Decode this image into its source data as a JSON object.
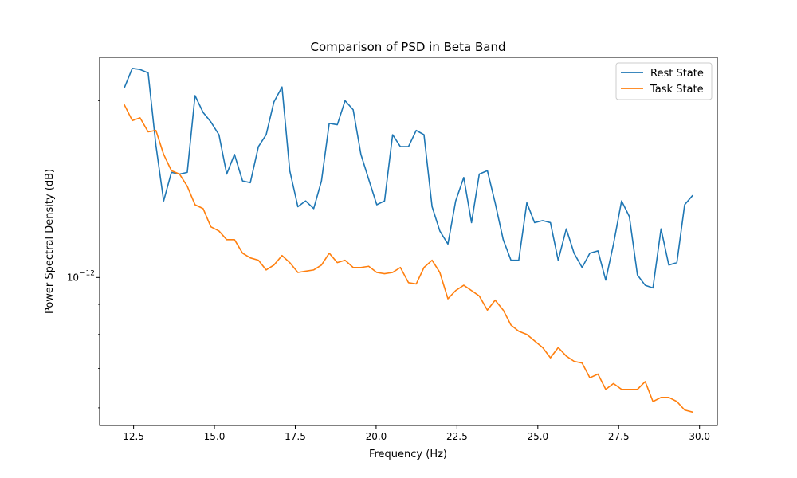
{
  "chart_data": {
    "type": "line",
    "title": "Comparison of PSD in Beta Band",
    "xlabel": "Frequency (Hz)",
    "ylabel": "Power Spectral Density (dB)",
    "xlim": [
      11.45,
      30.55
    ],
    "ylim": [
      5.6e-13,
      2.37e-12
    ],
    "y_scale": "log",
    "x_ticks": [
      12.5,
      15.0,
      17.5,
      20.0,
      22.5,
      25.0,
      27.5,
      30.0
    ],
    "x_tick_labels": [
      "12.5",
      "15.0",
      "17.5",
      "20.0",
      "22.5",
      "25.0",
      "27.5",
      "30.0"
    ],
    "y_major_tick": 1e-12,
    "y_major_tick_label_base": "10",
    "y_major_tick_label_exp": "−12",
    "y_minor_ticks": [
      6e-13,
      7e-13,
      8e-13,
      9e-13,
      2e-12
    ],
    "legend_position": "upper right",
    "grid": false,
    "x": [
      12.21,
      12.46,
      12.7,
      12.95,
      13.19,
      13.43,
      13.67,
      13.92,
      14.16,
      14.4,
      14.65,
      14.89,
      15.14,
      15.38,
      15.62,
      15.87,
      16.11,
      16.36,
      16.6,
      16.84,
      17.09,
      17.33,
      17.58,
      17.82,
      18.07,
      18.31,
      18.55,
      18.8,
      19.04,
      19.29,
      19.53,
      19.77,
      20.02,
      20.26,
      20.51,
      20.75,
      21.0,
      21.24,
      21.48,
      21.73,
      21.97,
      22.22,
      22.46,
      22.71,
      22.95,
      23.19,
      23.44,
      23.68,
      23.93,
      24.17,
      24.41,
      24.66,
      24.9,
      25.15,
      25.39,
      25.63,
      25.88,
      26.12,
      26.37,
      26.61,
      26.86,
      27.1,
      27.34,
      27.59,
      27.83,
      28.08,
      28.32,
      28.56,
      28.81,
      29.05,
      29.3,
      29.54,
      29.79
    ],
    "series": [
      {
        "name": "Rest State",
        "color": "#1f77b4",
        "values": [
          2.1e-12,
          2.27e-12,
          2.26e-12,
          2.23e-12,
          1.68e-12,
          1.35e-12,
          1.51e-12,
          1.5e-12,
          1.51e-12,
          2.04e-12,
          1.91e-12,
          1.84e-12,
          1.75e-12,
          1.5e-12,
          1.62e-12,
          1.46e-12,
          1.45e-12,
          1.67e-12,
          1.75e-12,
          1.99e-12,
          2.11e-12,
          1.52e-12,
          1.32e-12,
          1.35e-12,
          1.31e-12,
          1.46e-12,
          1.83e-12,
          1.82e-12,
          2e-12,
          1.93e-12,
          1.62e-12,
          1.47e-12,
          1.33e-12,
          1.35e-12,
          1.75e-12,
          1.67e-12,
          1.67e-12,
          1.78e-12,
          1.75e-12,
          1.32e-12,
          1.2e-12,
          1.14e-12,
          1.35e-12,
          1.48e-12,
          1.24e-12,
          1.5e-12,
          1.52e-12,
          1.34e-12,
          1.16e-12,
          1.07e-12,
          1.07e-12,
          1.34e-12,
          1.24e-12,
          1.25e-12,
          1.24e-12,
          1.07e-12,
          1.21e-12,
          1.1e-12,
          1.04e-12,
          1.1e-12,
          1.11e-12,
          9.9e-13,
          1.14e-12,
          1.35e-12,
          1.27e-12,
          1.01e-12,
          9.7e-13,
          9.6e-13,
          1.21e-12,
          1.05e-12,
          1.06e-12,
          1.33e-12,
          1.38e-12
        ]
      },
      {
        "name": "Task State",
        "color": "#ff7f0e",
        "values": [
          1.97e-12,
          1.85e-12,
          1.87e-12,
          1.77e-12,
          1.78e-12,
          1.62e-12,
          1.52e-12,
          1.5e-12,
          1.43e-12,
          1.33e-12,
          1.31e-12,
          1.22e-12,
          1.2e-12,
          1.16e-12,
          1.16e-12,
          1.1e-12,
          1.08e-12,
          1.07e-12,
          1.03e-12,
          1.05e-12,
          1.09e-12,
          1.06e-12,
          1.02e-12,
          1.025e-12,
          1.03e-12,
          1.05e-12,
          1.1e-12,
          1.06e-12,
          1.07e-12,
          1.04e-12,
          1.04e-12,
          1.045e-12,
          1.02e-12,
          1.015e-12,
          1.02e-12,
          1.04e-12,
          9.8e-13,
          9.75e-13,
          1.04e-12,
          1.07e-12,
          1.02e-12,
          9.2e-13,
          9.5e-13,
          9.7e-13,
          9.5e-13,
          9.3e-13,
          8.8e-13,
          9.15e-13,
          8.8e-13,
          8.3e-13,
          8.1e-13,
          8e-13,
          7.8e-13,
          7.6e-13,
          7.3e-13,
          7.6e-13,
          7.35e-13,
          7.2e-13,
          7.15e-13,
          6.75e-13,
          6.85e-13,
          6.45e-13,
          6.6e-13,
          6.45e-13,
          6.45e-13,
          6.45e-13,
          6.65e-13,
          6.15e-13,
          6.25e-13,
          6.25e-13,
          6.15e-13,
          5.95e-13,
          5.9e-13
        ]
      }
    ]
  }
}
